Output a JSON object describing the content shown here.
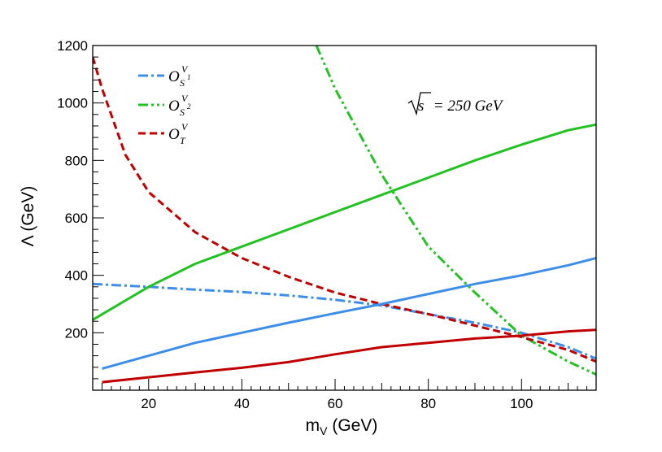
{
  "chart_data": {
    "type": "line",
    "title": "",
    "xlabel": "m",
    "xlabel_sub": "V",
    "xlabel_unit": " (GeV)",
    "ylabel": "Λ (GeV)",
    "xlim": [
      8,
      116
    ],
    "ylim": [
      0,
      1200
    ],
    "x_ticks": [
      20,
      40,
      60,
      80,
      100
    ],
    "y_ticks": [
      200,
      400,
      600,
      800,
      1000,
      1200
    ],
    "x_tick_labels": [
      "20",
      "40",
      "60",
      "80",
      "100"
    ],
    "y_tick_labels": [
      "200",
      "400",
      "600",
      "800",
      "1000",
      "1200"
    ],
    "annotation": {
      "sqrt_arg": "s",
      "text": " = 250 GeV"
    },
    "legend": {
      "position": "top-left",
      "entries": [
        {
          "main": "O",
          "sub": "S",
          "subsub": "1",
          "sup": "V",
          "series": "S1_dashdot"
        },
        {
          "main": "O",
          "sub": "S",
          "subsub": "2",
          "sup": "V",
          "series": "S2_dashdot"
        },
        {
          "main": "O",
          "sub": "T",
          "subsub": "",
          "sup": "V",
          "series": "T_dashed"
        }
      ]
    },
    "colors": {
      "blue": "#3d8ee8",
      "green": "#22c222",
      "red": "#c00000"
    },
    "series": [
      {
        "name": "S1_dashdot",
        "color": "blue",
        "dash": "12,4,3,4",
        "x": [
          8,
          20,
          30,
          40,
          50,
          60,
          70,
          80,
          90,
          100,
          110,
          116
        ],
        "y": [
          370,
          360,
          350,
          342,
          330,
          315,
          295,
          265,
          235,
          200,
          150,
          110
        ]
      },
      {
        "name": "S2_dashdot",
        "color": "green",
        "dash": "12,4,3,4,3,4",
        "x": [
          56,
          60,
          70,
          80,
          90,
          100,
          110,
          116
        ],
        "y": [
          1200,
          1050,
          750,
          500,
          340,
          190,
          100,
          55
        ]
      },
      {
        "name": "T_dashed",
        "color": "red",
        "dash": "9,5",
        "x": [
          8,
          10,
          15,
          20,
          30,
          40,
          50,
          60,
          70,
          80,
          90,
          100,
          110,
          116
        ],
        "y": [
          1160,
          1050,
          820,
          690,
          550,
          460,
          395,
          340,
          300,
          265,
          225,
          185,
          140,
          100
        ]
      },
      {
        "name": "S1_solid",
        "color": "blue",
        "dash": "",
        "x": [
          10,
          20,
          30,
          40,
          50,
          60,
          70,
          80,
          90,
          100,
          110,
          116
        ],
        "y": [
          75,
          120,
          165,
          200,
          235,
          268,
          300,
          335,
          370,
          400,
          435,
          460
        ]
      },
      {
        "name": "S2_solid",
        "color": "green",
        "dash": "",
        "x": [
          8,
          20,
          30,
          40,
          50,
          60,
          70,
          80,
          90,
          100,
          110,
          116
        ],
        "y": [
          245,
          360,
          440,
          500,
          560,
          620,
          680,
          740,
          800,
          855,
          905,
          925
        ]
      },
      {
        "name": "T_solid",
        "color": "red",
        "dash": "",
        "x": [
          10,
          20,
          30,
          40,
          50,
          60,
          70,
          80,
          90,
          100,
          110,
          116
        ],
        "y": [
          28,
          45,
          62,
          78,
          98,
          125,
          150,
          165,
          180,
          190,
          205,
          210
        ]
      }
    ]
  }
}
